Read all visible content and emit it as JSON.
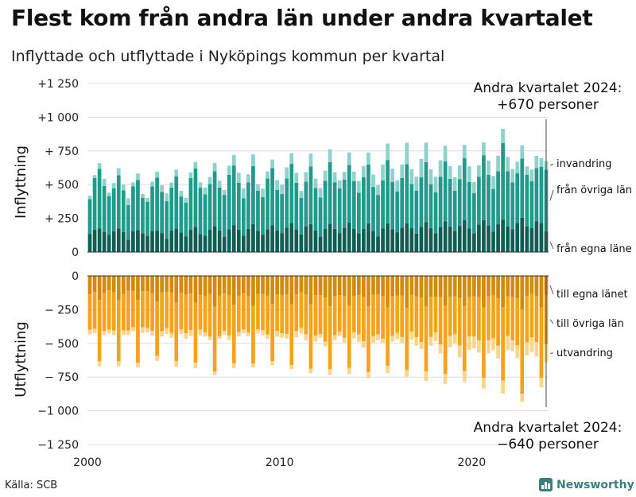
{
  "title": "Flest kom från andra län under andra kvartalet",
  "subtitle": "Inflyttade och utflyttade i Nyköpings kommun per kvartal",
  "source": "Källa: SCB",
  "brand": "Newsworthy",
  "colors": {
    "inflow_egna": "#0e5e53",
    "inflow_ovriga": "#21998b",
    "inflow_invandring": "#8ed3cb",
    "outflow_egna": "#d48a0c",
    "outflow_ovriga": "#f5a21d",
    "outflow_utvandring": "#fbd58c",
    "brand": "#3a7f7b"
  },
  "chart_data": [
    {
      "type": "bar",
      "stacked": true,
      "ylabel": "Inflyttning",
      "ylim": [
        0,
        1250
      ],
      "yticks": [
        0,
        250,
        500,
        750,
        1000,
        1250
      ],
      "ytick_labels": [
        "0",
        "+ 250",
        "+ 500",
        "+ 750",
        "+1 000",
        "+1 250"
      ],
      "x_start": "2000 Q1",
      "x_end": "2024 Q2",
      "series": [
        {
          "name": "från egna läne",
          "values": [
            135,
            167,
            176,
            151,
            129,
            155,
            176,
            149,
            93,
            155,
            162,
            139,
            120,
            156,
            161,
            141,
            99,
            160,
            171,
            146,
            115,
            165,
            185,
            134,
            121,
            165,
            193,
            160,
            114,
            170,
            200,
            167,
            123,
            172,
            208,
            156,
            129,
            170,
            199,
            160,
            141,
            182,
            216,
            169,
            130,
            193,
            207,
            159,
            116,
            171,
            209,
            172,
            141,
            181,
            219,
            171,
            138,
            171,
            213,
            157,
            115,
            174,
            213,
            170,
            147,
            180,
            214,
            177,
            136,
            186,
            221,
            178,
            140,
            187,
            227,
            189,
            158,
            194,
            236,
            176,
            138,
            204,
            237,
            199,
            152,
            206,
            241,
            191,
            170,
            216,
            255,
            191,
            177,
            229,
            216,
            154
          ]
        },
        {
          "name": "från övriga län",
          "values": [
            258,
            382,
            442,
            339,
            286,
            317,
            393,
            308,
            256,
            333,
            372,
            262,
            253,
            331,
            392,
            304,
            278,
            318,
            389,
            266,
            252,
            383,
            436,
            343,
            308,
            339,
            407,
            318,
            310,
            402,
            442,
            346,
            276,
            345,
            430,
            299,
            279,
            375,
            424,
            301,
            289,
            364,
            438,
            344,
            271,
            329,
            427,
            316,
            288,
            357,
            458,
            344,
            331,
            356,
            426,
            354,
            302,
            385,
            436,
            326,
            309,
            357,
            470,
            351,
            303,
            370,
            437,
            327,
            320,
            369,
            446,
            325,
            304,
            372,
            445,
            354,
            296,
            347,
            460,
            343,
            298,
            353,
            481,
            374,
            316,
            393,
            568,
            409,
            347,
            368,
            439,
            383,
            349,
            394,
            417,
            456
          ]
        },
        {
          "name": "invandring",
          "values": [
            25,
            22,
            42,
            53,
            26,
            40,
            53,
            45,
            50,
            28,
            49,
            31,
            28,
            35,
            44,
            51,
            58,
            38,
            51,
            42,
            36,
            43,
            47,
            40,
            50,
            53,
            61,
            50,
            36,
            69,
            78,
            75,
            74,
            60,
            86,
            49,
            62,
            53,
            63,
            72,
            70,
            82,
            79,
            75,
            52,
            70,
            96,
            70,
            71,
            75,
            96,
            76,
            59,
            58,
            94,
            72,
            87,
            82,
            90,
            92,
            72,
            117,
            121,
            98,
            82,
            99,
            160,
            111,
            103,
            135,
            145,
            112,
            115,
            122,
            117,
            95,
            102,
            102,
            98,
            117,
            83,
            87,
            95,
            105,
            96,
            116,
            105,
            105,
            99,
            86,
            98,
            61,
            85,
            91,
            63,
            64
          ]
        }
      ]
    },
    {
      "type": "bar",
      "stacked": true,
      "ylabel": "Utflyttning",
      "ylim": [
        -1250,
        0
      ],
      "yticks": [
        0,
        -250,
        -500,
        -750,
        -1000,
        -1250
      ],
      "ytick_labels": [
        "0",
        "− 250",
        "− 500",
        "− 750",
        "−1 000",
        "−1 250"
      ],
      "x_start": "2000 Q1",
      "x_end": "2024 Q2",
      "xticks": [
        2000,
        2010,
        2020
      ],
      "series": [
        {
          "name": "till egna länet",
          "values": [
            -137,
            -118,
            -178,
            -126,
            -107,
            -122,
            -181,
            -133,
            -110,
            -109,
            -178,
            -112,
            -114,
            -128,
            -191,
            -121,
            -120,
            -125,
            -198,
            -124,
            -138,
            -131,
            -199,
            -141,
            -151,
            -134,
            -227,
            -147,
            -130,
            -144,
            -216,
            -147,
            -129,
            -148,
            -223,
            -132,
            -132,
            -147,
            -208,
            -136,
            -141,
            -137,
            -211,
            -136,
            -123,
            -140,
            -211,
            -142,
            -143,
            -160,
            -225,
            -149,
            -142,
            -151,
            -218,
            -148,
            -142,
            -157,
            -225,
            -140,
            -138,
            -151,
            -234,
            -150,
            -145,
            -146,
            -237,
            -139,
            -151,
            -159,
            -228,
            -154,
            -155,
            -157,
            -218,
            -154,
            -150,
            -163,
            -221,
            -157,
            -150,
            -156,
            -233,
            -152,
            -144,
            -167,
            -234,
            -152,
            -157,
            -166,
            -248,
            -149,
            -134,
            -148,
            -233,
            -141
          ]
        },
        {
          "name": "till övriga län",
          "values": [
            -263,
            -275,
            -455,
            -281,
            -292,
            -283,
            -452,
            -271,
            -294,
            -271,
            -467,
            -269,
            -272,
            -279,
            -401,
            -290,
            -266,
            -297,
            -434,
            -273,
            -287,
            -271,
            -444,
            -257,
            -267,
            -316,
            -482,
            -300,
            -277,
            -296,
            -432,
            -269,
            -268,
            -273,
            -427,
            -264,
            -269,
            -287,
            -423,
            -272,
            -284,
            -293,
            -450,
            -273,
            -262,
            -293,
            -476,
            -300,
            -287,
            -327,
            -467,
            -291,
            -271,
            -308,
            -464,
            -270,
            -293,
            -328,
            -487,
            -306,
            -295,
            -314,
            -432,
            -294,
            -277,
            -307,
            -460,
            -274,
            -303,
            -331,
            -481,
            -297,
            -264,
            -350,
            -509,
            -291,
            -283,
            -353,
            -485,
            -291,
            -298,
            -323,
            -522,
            -325,
            -318,
            -351,
            -542,
            -294,
            -321,
            -349,
            -625,
            -344,
            -322,
            -343,
            -523,
            -364
          ]
        },
        {
          "name": "utvandring",
          "values": [
            -33,
            -29,
            -38,
            -33,
            -28,
            -34,
            -38,
            -34,
            -34,
            -30,
            -34,
            -40,
            -31,
            -35,
            -38,
            -39,
            -44,
            -36,
            -40,
            -33,
            -41,
            -43,
            -41,
            -43,
            -32,
            -26,
            -26,
            -20,
            -29,
            -34,
            -35,
            -32,
            -28,
            -25,
            -29,
            -30,
            -39,
            -32,
            -32,
            -42,
            -33,
            -35,
            -31,
            -47,
            -42,
            -45,
            -35,
            -44,
            -29,
            -35,
            -42,
            -36,
            -32,
            -34,
            -45,
            -45,
            -56,
            -47,
            -45,
            -51,
            -42,
            -30,
            -55,
            -44,
            -47,
            -44,
            -51,
            -60,
            -62,
            -51,
            -69,
            -67,
            -64,
            -68,
            -75,
            -83,
            -69,
            -88,
            -81,
            -101,
            -89,
            -90,
            -81,
            -97,
            -88,
            -94,
            -96,
            -102,
            -80,
            -94,
            -60,
            -97,
            -107,
            -106,
            -70,
            -136
          ]
        }
      ]
    }
  ],
  "annotations": {
    "in_header": "Andra kvartalet 2024:",
    "in_value": "+670 personer",
    "out_header": "Andra kvartalet 2024:",
    "out_value": "−640 personer"
  },
  "series_labels": {
    "in": [
      "invandring",
      "från övriga län",
      "från egna läne"
    ],
    "out": [
      "till egna länet",
      "till övriga län",
      "utvandring"
    ]
  }
}
